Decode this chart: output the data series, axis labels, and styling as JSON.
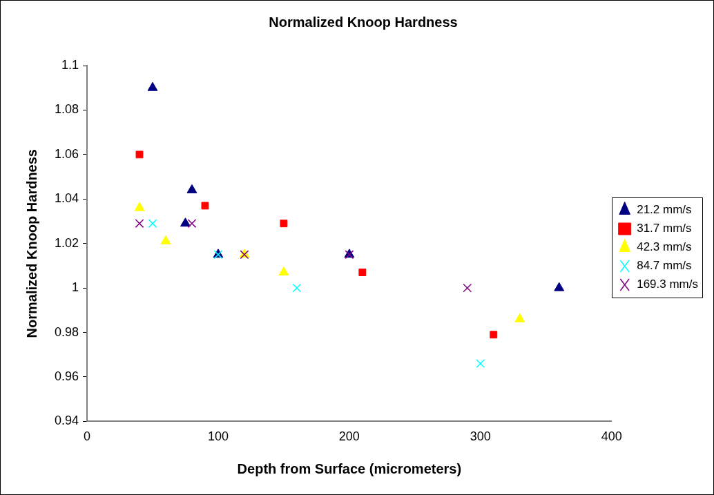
{
  "chart_data": {
    "type": "scatter",
    "title": "Normalized Knoop Hardness",
    "xlabel": "Depth from Surface (micrometers)",
    "ylabel": "Normalized Knoop Hardness",
    "xlim": [
      0,
      400
    ],
    "xticks": [
      0,
      100,
      200,
      300,
      400
    ],
    "ylim": [
      0.94,
      1.1
    ],
    "yticks": [
      0.94,
      0.96,
      0.98,
      1,
      1.02,
      1.04,
      1.06,
      1.08,
      1.1
    ],
    "grid": false,
    "legend": "right",
    "series": [
      {
        "name": "21.2 mm/s",
        "color": "#000080",
        "marker": "triangle",
        "x": [
          50,
          80,
          75,
          100,
          200,
          360
        ],
        "values": [
          1.09,
          1.044,
          1.029,
          1.015,
          1.015,
          1.0
        ]
      },
      {
        "name": "31.7 mm/s",
        "color": "#ff0000",
        "marker": "square",
        "x": [
          40,
          90,
          150,
          210,
          310
        ],
        "values": [
          1.06,
          1.037,
          1.029,
          1.007,
          0.979
        ]
      },
      {
        "name": "42.3 mm/s",
        "color": "#ffff00",
        "marker": "triangle",
        "x": [
          40,
          60,
          120,
          150,
          330
        ],
        "values": [
          1.036,
          1.021,
          1.015,
          1.007,
          0.986
        ]
      },
      {
        "name": "84.7 mm/s",
        "color": "#00ffff",
        "marker": "cross",
        "x": [
          50,
          100,
          160,
          300
        ],
        "values": [
          1.029,
          1.015,
          1.0,
          0.966
        ]
      },
      {
        "name": "169.3 mm/s",
        "color": "#800080",
        "marker": "cross",
        "x": [
          40,
          80,
          120,
          200,
          290
        ],
        "values": [
          1.029,
          1.029,
          1.015,
          1.015,
          1.0
        ]
      }
    ]
  }
}
